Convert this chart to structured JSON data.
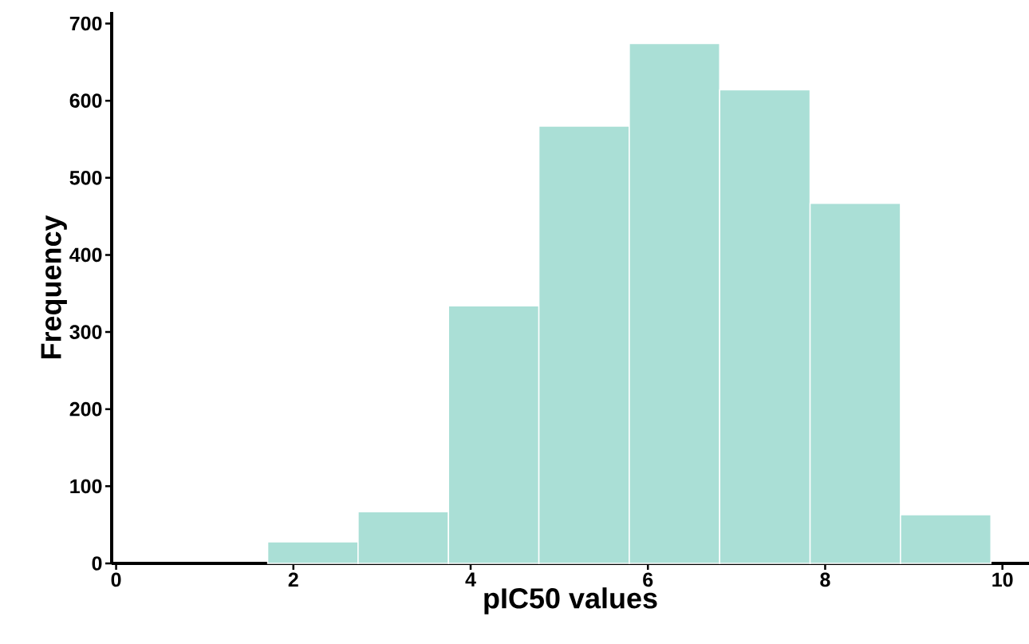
{
  "chart_data": {
    "type": "histogram",
    "xlabel": "pIC50 values",
    "ylabel": "Frequency",
    "bins": [
      1.71,
      2.73,
      3.75,
      4.77,
      5.79,
      6.81,
      7.83,
      8.85,
      9.87
    ],
    "values": [
      28,
      67,
      334,
      567,
      674,
      614,
      467,
      63
    ],
    "color": "#aadfd6",
    "xlim": [
      -0.05,
      10.3
    ],
    "ylim": [
      0,
      715
    ],
    "xticks": [
      0,
      2,
      4,
      6,
      8,
      10
    ],
    "yticks": [
      0,
      100,
      200,
      300,
      400,
      500,
      600,
      700
    ]
  }
}
